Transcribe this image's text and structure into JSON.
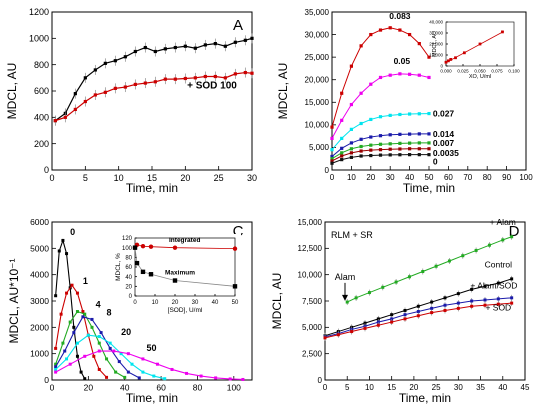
{
  "chart_data": [
    {
      "panel_label": "A",
      "type": "line",
      "xlabel": "Time, min",
      "ylabel": "MDCL, AU",
      "xlim": [
        0,
        30
      ],
      "ylim": [
        0,
        1200
      ],
      "xticks": [
        0,
        5,
        10,
        15,
        20,
        25,
        30
      ],
      "yticks": [
        0,
        200,
        400,
        600,
        800,
        1000,
        1200
      ],
      "colors": {
        "control": "#000000",
        "sod": "#cc0000"
      },
      "annotations": [
        {
          "text": "+ SOD 100",
          "x": 24,
          "y": 620
        }
      ],
      "series": [
        {
          "key": "control",
          "x": [
            0.5,
            2,
            3.5,
            5,
            6.5,
            8,
            9.5,
            11,
            12.5,
            14,
            15.5,
            17,
            18.5,
            20,
            21.5,
            23,
            24.5,
            26,
            27.5,
            29,
            30
          ],
          "values": [
            375,
            430,
            580,
            700,
            760,
            810,
            830,
            860,
            900,
            930,
            900,
            920,
            930,
            940,
            925,
            950,
            960,
            940,
            970,
            985,
            1000
          ]
        },
        {
          "key": "sod",
          "x": [
            0.5,
            2,
            3.5,
            5,
            6.5,
            8,
            9.5,
            11,
            12.5,
            14,
            15.5,
            17,
            18.5,
            20,
            21.5,
            23,
            24.5,
            26,
            27.5,
            29,
            30
          ],
          "values": [
            375,
            400,
            460,
            520,
            570,
            590,
            620,
            630,
            650,
            660,
            670,
            690,
            690,
            695,
            700,
            710,
            710,
            700,
            730,
            740,
            735
          ]
        }
      ]
    },
    {
      "panel_label": "B",
      "type": "line",
      "xlabel": "Time, min",
      "ylabel": "MDCL, AU",
      "xlim": [
        0,
        100
      ],
      "ylim": [
        0,
        35000
      ],
      "xticks": [
        0,
        10,
        20,
        30,
        40,
        50,
        60,
        70,
        80,
        90,
        100
      ],
      "yticks": [
        0,
        5000,
        10000,
        15000,
        20000,
        25000,
        30000,
        35000
      ],
      "ytick_labels": [
        "0",
        "5,000",
        "10,000",
        "15,000",
        "20,000",
        "25,000",
        "30,000",
        "35,000"
      ],
      "series": [
        {
          "name": "0.083",
          "color": "#cc0000",
          "x": [
            0,
            5,
            10,
            15,
            20,
            25,
            30,
            35,
            40,
            45,
            50
          ],
          "values": [
            9500,
            17000,
            23000,
            27500,
            30000,
            31000,
            31500,
            31000,
            30000,
            28000,
            25000
          ]
        },
        {
          "name": "0.05",
          "color": "#ee00ee",
          "x": [
            0,
            5,
            10,
            15,
            20,
            25,
            30,
            35,
            40,
            45,
            50
          ],
          "values": [
            7000,
            11000,
            14500,
            17000,
            19000,
            20500,
            21000,
            21300,
            21200,
            21000,
            20500
          ]
        },
        {
          "name": "0.027",
          "color": "#00e5ee",
          "x": [
            0,
            5,
            10,
            15,
            20,
            25,
            30,
            35,
            40,
            45,
            50
          ],
          "values": [
            4500,
            7000,
            9000,
            10300,
            11200,
            11800,
            12100,
            12300,
            12400,
            12450,
            12500
          ]
        },
        {
          "name": "0.014",
          "color": "#1a1aaa",
          "x": [
            0,
            5,
            10,
            15,
            20,
            25,
            30,
            35,
            40,
            45,
            50
          ],
          "values": [
            3000,
            4800,
            6000,
            6800,
            7300,
            7600,
            7800,
            7900,
            7950,
            8000,
            8000
          ]
        },
        {
          "name": "0.007",
          "color": "#22aa22",
          "x": [
            0,
            5,
            10,
            15,
            20,
            25,
            30,
            35,
            40,
            45,
            50
          ],
          "values": [
            2500,
            3800,
            4700,
            5200,
            5500,
            5700,
            5800,
            5900,
            5950,
            6000,
            6000
          ]
        },
        {
          "name": "0.0035",
          "color": "#990000",
          "x": [
            0,
            5,
            10,
            15,
            20,
            25,
            30,
            35,
            40,
            45,
            50
          ],
          "values": [
            2000,
            3100,
            3800,
            4200,
            4400,
            4500,
            4600,
            4650,
            4700,
            4700,
            4700
          ]
        },
        {
          "name": "0",
          "color": "#111111",
          "x": [
            0,
            5,
            10,
            15,
            20,
            25,
            30,
            35,
            40,
            45,
            50
          ],
          "values": [
            1500,
            2300,
            2800,
            3100,
            3200,
            3300,
            3350,
            3380,
            3400,
            3400,
            3400
          ]
        }
      ],
      "inset": {
        "type": "scatter",
        "xlabel": "XO, U/ml",
        "ylabel": "MDCL, AU",
        "xlim": [
          0,
          0.1
        ],
        "ylim": [
          0,
          40000
        ],
        "xticks": [
          0.0,
          0.025,
          0.05,
          0.075,
          0.1
        ],
        "xtick_labels": [
          "0.000",
          "0.025",
          "0.050",
          "0.075",
          "0.100"
        ],
        "yticks": [
          0,
          10000,
          20000,
          30000,
          40000
        ],
        "ytick_labels": [
          "0",
          "10,000",
          "20,000",
          "30,000",
          "40,000"
        ],
        "points": {
          "x": [
            0,
            0.0035,
            0.007,
            0.014,
            0.027,
            0.05,
            0.083
          ],
          "values": [
            3400,
            4700,
            6000,
            7500,
            12000,
            20000,
            31000
          ]
        },
        "fit": {
          "x": [
            0,
            0.085
          ],
          "values": [
            3000,
            31500
          ]
        },
        "color": "#cc0000"
      }
    },
    {
      "panel_label": "C",
      "type": "line",
      "xlabel": "Time, min",
      "ylabel": "MDCL, AU*10⁻¹",
      "xlim": [
        0,
        110
      ],
      "ylim": [
        0,
        6000
      ],
      "xticks": [
        0,
        20,
        40,
        60,
        80,
        100
      ],
      "yticks": [
        0,
        1000,
        2000,
        3000,
        4000,
        5000,
        6000
      ],
      "series": [
        {
          "name": "0",
          "color": "#000000",
          "x": [
            2,
            4,
            6,
            8,
            10,
            12,
            14,
            16,
            18
          ],
          "values": [
            3200,
            4900,
            5300,
            4800,
            3500,
            2000,
            900,
            300,
            50
          ]
        },
        {
          "name": "1",
          "color": "#cc0000",
          "x": [
            2,
            5,
            8,
            11,
            14,
            17,
            20,
            23,
            26,
            30
          ],
          "values": [
            1200,
            2500,
            3300,
            3600,
            3300,
            2600,
            1700,
            900,
            400,
            100
          ]
        },
        {
          "name": "4",
          "color": "#22aa22",
          "x": [
            2,
            6,
            10,
            14,
            18,
            22,
            26,
            30,
            35,
            40
          ],
          "values": [
            600,
            1400,
            2200,
            2600,
            2500,
            2000,
            1400,
            800,
            300,
            100
          ]
        },
        {
          "name": "8",
          "color": "#1a1aaa",
          "x": [
            2,
            7,
            12,
            17,
            22,
            27,
            32,
            37,
            42,
            48
          ],
          "values": [
            500,
            1100,
            1800,
            2400,
            2300,
            1800,
            1200,
            700,
            300,
            80
          ]
        },
        {
          "name": "20",
          "color": "#00e5ee",
          "x": [
            2,
            8,
            14,
            20,
            26,
            32,
            38,
            44,
            50,
            56,
            62
          ],
          "values": [
            400,
            800,
            1400,
            1700,
            1650,
            1400,
            1000,
            600,
            300,
            150,
            50
          ]
        },
        {
          "name": "50",
          "color": "#ee00ee",
          "x": [
            2,
            10,
            18,
            26,
            34,
            42,
            50,
            58,
            66,
            74,
            82,
            90,
            98,
            105
          ],
          "values": [
            300,
            600,
            900,
            1100,
            1100,
            1000,
            800,
            600,
            400,
            250,
            150,
            80,
            40,
            20
          ]
        }
      ],
      "inset": {
        "type": "scatter",
        "xlabel": "[SOD], U/ml",
        "ylabel": "MDCL, %",
        "xlim": [
          0,
          50
        ],
        "ylim": [
          0,
          120
        ],
        "xticks": [
          0,
          10,
          20,
          30,
          40,
          50
        ],
        "yticks": [
          0,
          20,
          40,
          60,
          80,
          100,
          120
        ],
        "series": [
          {
            "name": "Integrated",
            "color": "#cc0000",
            "x": [
              0,
              1,
              4,
              8,
              20,
              50
            ],
            "values": [
              100,
              106,
              103,
              102,
              100,
              98
            ]
          },
          {
            "name": "Maximum",
            "color": "#000000",
            "x": [
              0,
              1,
              4,
              8,
              20,
              50
            ],
            "values": [
              100,
              68,
              50,
              45,
              32,
              20
            ]
          }
        ]
      }
    },
    {
      "panel_label": "D",
      "type": "line",
      "title": "RLM + SR",
      "xlabel": "Time, min",
      "ylabel": "MDCL, AU",
      "xlim": [
        0,
        45
      ],
      "ylim": [
        0,
        15000
      ],
      "xticks": [
        0,
        5,
        10,
        15,
        20,
        25,
        30,
        35,
        40,
        45
      ],
      "yticks": [
        0,
        2500,
        5000,
        7500,
        10000,
        12500,
        15000
      ],
      "ytick_labels": [
        "0",
        "2,500",
        "5,000",
        "7,500",
        "10,000",
        "12,500",
        "15,000"
      ],
      "annotations": [
        {
          "text": "Alam",
          "x": 4.5,
          "y": 9500,
          "arrow": true
        }
      ],
      "series": [
        {
          "name": "+ Alam",
          "color": "#22aa22",
          "x": [
            5,
            7,
            10,
            13,
            16,
            19,
            22,
            25,
            28,
            31,
            34,
            37,
            40,
            42
          ],
          "values": [
            7400,
            7800,
            8300,
            8800,
            9300,
            9800,
            10300,
            10800,
            11300,
            11800,
            12300,
            12800,
            13300,
            13600
          ]
        },
        {
          "name": "Control",
          "color": "#000000",
          "x": [
            0,
            3,
            6,
            9,
            12,
            15,
            18,
            21,
            24,
            27,
            30,
            33,
            36,
            39,
            42
          ],
          "values": [
            4200,
            4600,
            5000,
            5400,
            5800,
            6200,
            6600,
            7000,
            7400,
            7800,
            8200,
            8600,
            8900,
            9200,
            9600
          ]
        },
        {
          "name": "+ Alam/SOD",
          "color": "#1a1aaa",
          "x": [
            0,
            3,
            6,
            9,
            12,
            15,
            18,
            21,
            24,
            27,
            30,
            33,
            36,
            39,
            42
          ],
          "values": [
            4100,
            4400,
            4800,
            5100,
            5500,
            5800,
            6200,
            6500,
            6800,
            7100,
            7300,
            7500,
            7600,
            7700,
            7800
          ]
        },
        {
          "name": "+ SOD",
          "color": "#cc0000",
          "x": [
            0,
            3,
            6,
            9,
            12,
            15,
            18,
            21,
            24,
            27,
            30,
            33,
            36,
            39,
            42
          ],
          "values": [
            4000,
            4300,
            4600,
            4900,
            5200,
            5500,
            5800,
            6100,
            6400,
            6600,
            6800,
            7000,
            7100,
            7200,
            7300
          ]
        }
      ]
    }
  ]
}
